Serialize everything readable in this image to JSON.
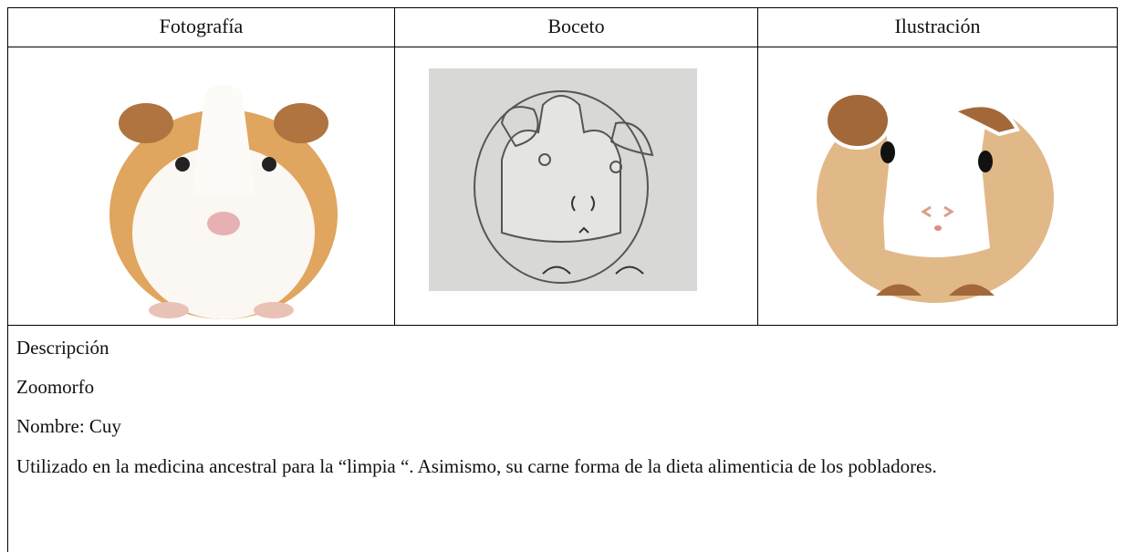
{
  "table": {
    "headers": [
      "Fotografía",
      "Boceto",
      "Ilustración"
    ]
  },
  "description": {
    "title": "Descripción",
    "lines": [
      "Zoomorfo",
      "Nombre: Cuy",
      "Utilizado en la medicina ancestral para la “limpia “. Asimismo, su carne forma de la dieta alimenticia de los pobladores."
    ]
  }
}
